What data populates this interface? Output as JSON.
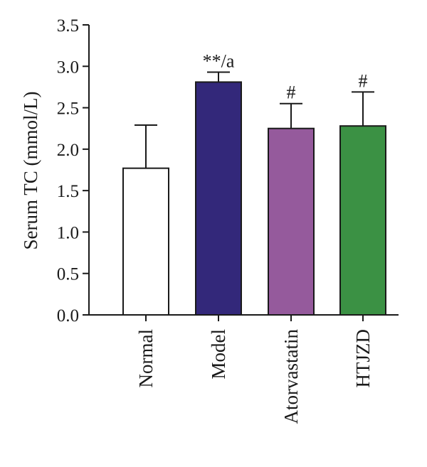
{
  "chart_data": {
    "type": "bar",
    "ylabel": "Serum TC (mmol/L)",
    "ylim": [
      0,
      3.5
    ],
    "yticks": [
      "0.0",
      "0.5",
      "1.0",
      "1.5",
      "2.0",
      "2.5",
      "3.0",
      "3.5"
    ],
    "grid": false,
    "categories": [
      "Normal",
      "Model",
      "Atorvastatin",
      "HTJZD"
    ],
    "values": [
      1.77,
      2.81,
      2.25,
      2.28
    ],
    "errors": [
      0.52,
      0.12,
      0.3,
      0.41
    ],
    "annotations": [
      "",
      "**/a",
      "#",
      "#"
    ],
    "colors": [
      "#ffffff",
      "#33287a",
      "#955a9c",
      "#3b9144"
    ]
  }
}
